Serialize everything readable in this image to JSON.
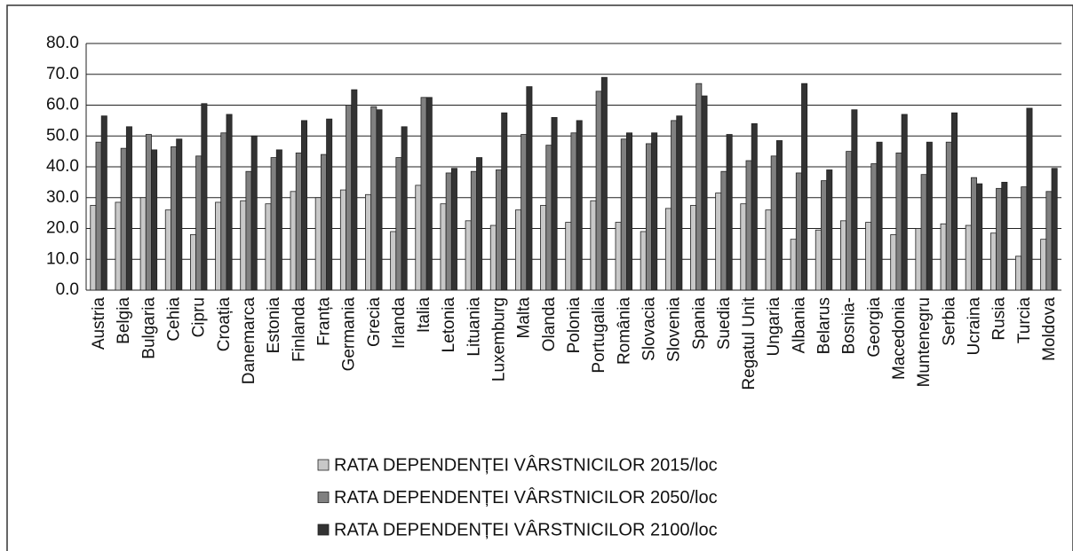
{
  "chart_data": {
    "type": "bar",
    "categories": [
      "Austria",
      "Belgia",
      "Bulgaria",
      "Cehia",
      "Cipru",
      "Croația",
      "Danemarca",
      "Estonia",
      "Finlanda",
      "Franța",
      "Germania",
      "Grecia",
      "Irlanda",
      "Italia",
      "Letonia",
      "Lituania",
      "Luxemburg",
      "Malta",
      "Olanda",
      "Polonia",
      "Portugalia",
      "România",
      "Slovacia",
      "Slovenia",
      "Spania",
      "Suedia",
      "Regatul Unit",
      "Ungaria",
      "Albania",
      "Belarus",
      "Bosnia-",
      "Georgia",
      "Macedonia",
      "Muntenegru",
      "Serbia",
      "Ucraina",
      "Rusia",
      "Turcia",
      "Moldova"
    ],
    "series": [
      {
        "name": "RATA DEPENDENȚEI VÂRSTNICILOR 2015/loc",
        "color": "#c8c8c8",
        "values": [
          27.5,
          28.5,
          30,
          26,
          18,
          28.5,
          29,
          28,
          32,
          30,
          32.5,
          31,
          19,
          34,
          28,
          22.5,
          21,
          26,
          27.5,
          22,
          29,
          22,
          19,
          26.5,
          27.5,
          31.5,
          28,
          26,
          16.5,
          19.5,
          22.5,
          22,
          18,
          20,
          21.5,
          21,
          18.5,
          11,
          16.5
        ]
      },
      {
        "name": "RATA DEPENDENȚEI VÂRSTNICILOR 2050/loc",
        "color": "#808080",
        "values": [
          48,
          46,
          50.5,
          46.5,
          43.5,
          51,
          38.5,
          43,
          44.5,
          44,
          60,
          59.5,
          43,
          62.5,
          38,
          38.5,
          39,
          50.5,
          47,
          51,
          64.5,
          49,
          47.5,
          55,
          67,
          38.5,
          42,
          43.5,
          38,
          35.5,
          45,
          41,
          44.5,
          37.5,
          48,
          36.5,
          33,
          33.5,
          32
        ]
      },
      {
        "name": "RATA DEPENDENȚEI VÂRSTNICILOR 2100/loc",
        "color": "#333333",
        "values": [
          56.5,
          53,
          45.5,
          49,
          60.5,
          57,
          50,
          45.5,
          55,
          55.5,
          65,
          58.5,
          53,
          62.5,
          39.5,
          43,
          57.5,
          66,
          56,
          55,
          69,
          51,
          51,
          56.5,
          63,
          50.5,
          54,
          48.5,
          67,
          39,
          58.5,
          48,
          57,
          48,
          57.5,
          34.5,
          35,
          59,
          39.5
        ]
      }
    ],
    "ylim": [
      0,
      80
    ],
    "yticks": [
      {
        "value": 0,
        "label": "0.0"
      },
      {
        "value": 10,
        "label": "10.0"
      },
      {
        "value": 20,
        "label": "20.0"
      },
      {
        "value": 30,
        "label": "30.0"
      },
      {
        "value": 40,
        "label": "40.0"
      },
      {
        "value": 50,
        "label": "50.0"
      },
      {
        "value": 60,
        "label": "60.0"
      },
      {
        "value": 70,
        "label": "70.0"
      },
      {
        "value": 80,
        "label": "80.0"
      }
    ],
    "grid": true
  }
}
